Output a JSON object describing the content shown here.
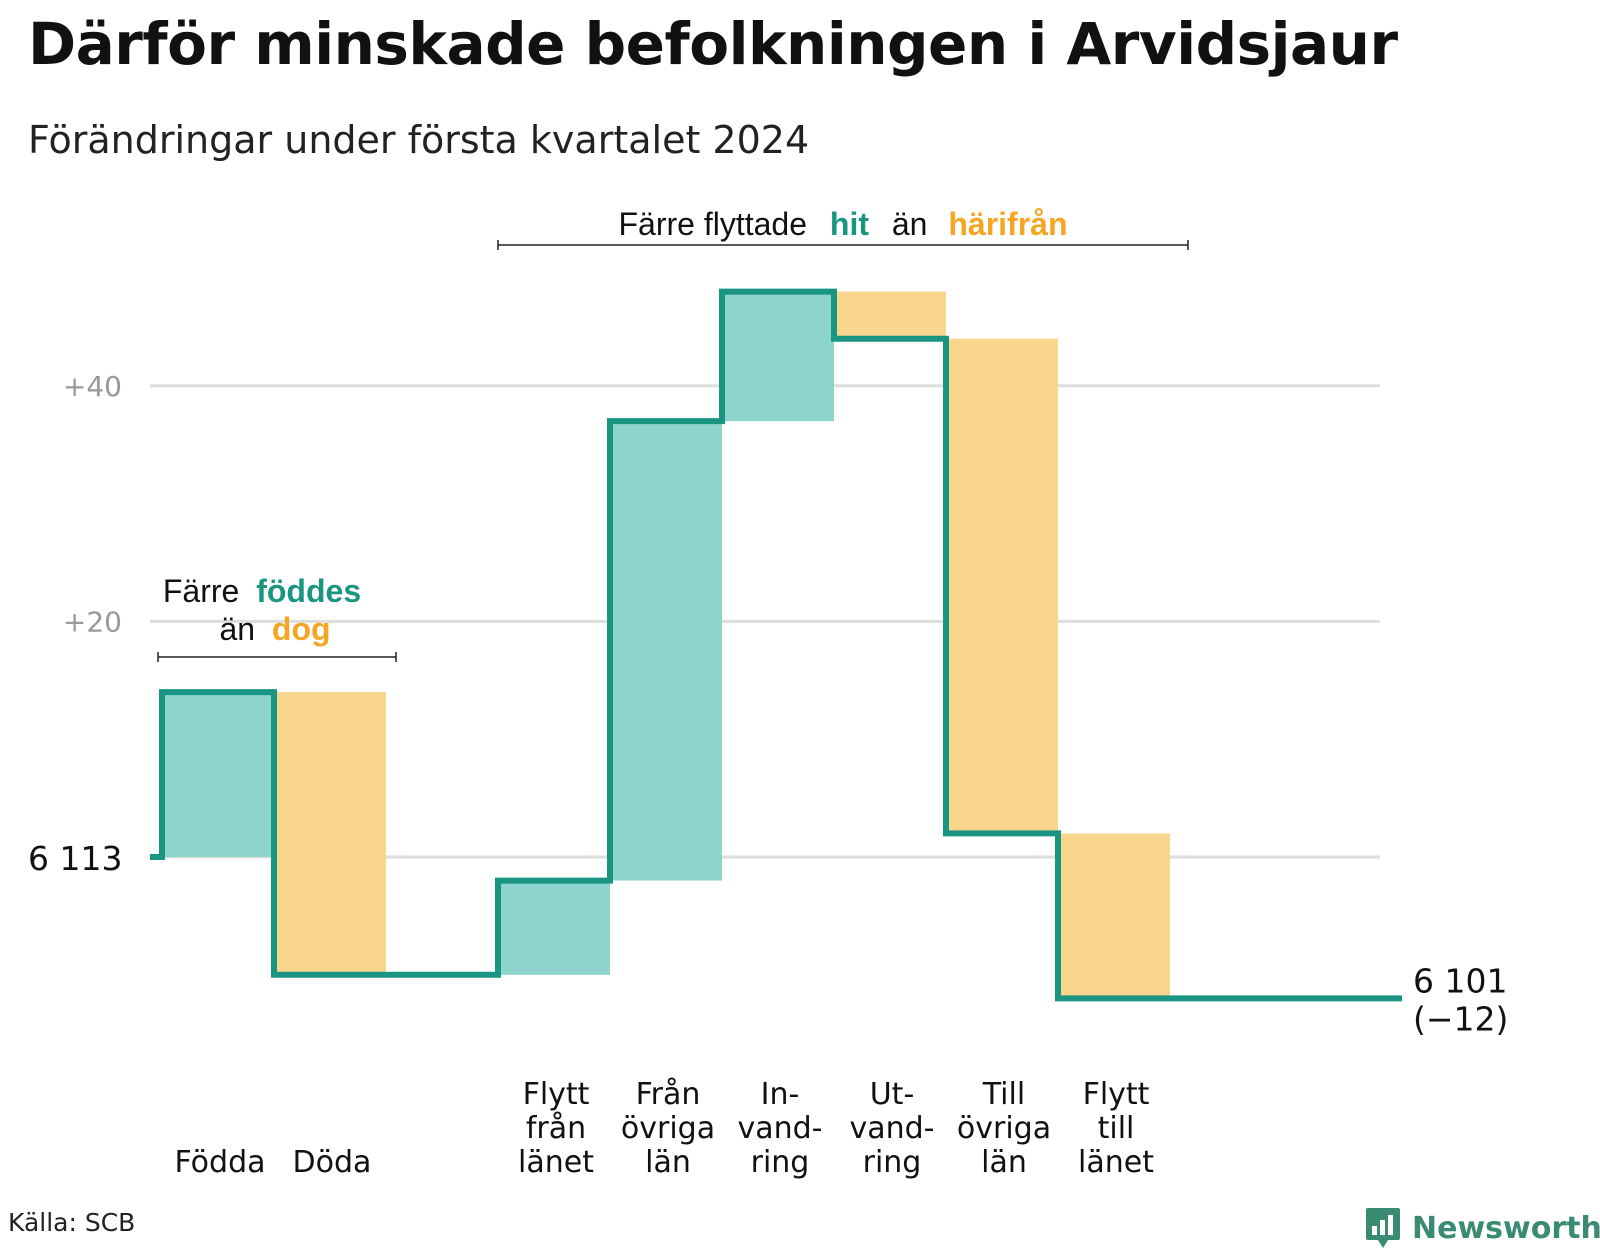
{
  "title": "Därför minskade befolkningen i Arvidsjaur",
  "subtitle": "Förändringar under första kvartalet 2024",
  "source": "Källa: SCB",
  "brand": "Newsworthy",
  "colors": {
    "increase": "#8dd5cc",
    "decrease": "#fad58e",
    "line": "#1a9582",
    "grid": "#dddddd",
    "tick": "#999999",
    "accent_teal": "#1a9582",
    "accent_orange": "#f5a623"
  },
  "annotations": {
    "natural": {
      "line1_prefix": "Färre",
      "line1_highlight": "föddes",
      "line2_prefix": "än",
      "line2_highlight": "dog"
    },
    "migration": {
      "prefix": "Färre flyttade",
      "highlight1": "hit",
      "middle": "än",
      "highlight2": "härifrån"
    }
  },
  "chart_data": {
    "type": "waterfall",
    "start_value": 6113,
    "start_label": "6 113",
    "end_value": 6101,
    "end_label_line1": "6 101",
    "end_label_line2": "(−12)",
    "yticks": [
      {
        "value": 40,
        "label": "+40"
      },
      {
        "value": 20,
        "label": "+20"
      },
      {
        "value": 0,
        "label": ""
      }
    ],
    "ylim": [
      -17,
      48
    ],
    "steps": [
      {
        "name": "Födda",
        "label_lines": [
          "Födda"
        ],
        "change": 14,
        "kind": "increase"
      },
      {
        "name": "Döda",
        "label_lines": [
          "Döda"
        ],
        "change": -24,
        "kind": "decrease"
      },
      {
        "name": "gap",
        "label_lines": [],
        "change": 0,
        "kind": "spacer"
      },
      {
        "name": "Flytt från länet",
        "label_lines": [
          "Flytt",
          "från",
          "länet"
        ],
        "change": 8,
        "kind": "increase"
      },
      {
        "name": "Från övriga län",
        "label_lines": [
          "Från",
          "övriga",
          "län"
        ],
        "change": 39,
        "kind": "increase"
      },
      {
        "name": "Invandring",
        "label_lines": [
          "In-",
          "vand-",
          "ring"
        ],
        "change": 11,
        "kind": "increase"
      },
      {
        "name": "Utvandring",
        "label_lines": [
          "Ut-",
          "vand-",
          "ring"
        ],
        "change": -4,
        "kind": "decrease"
      },
      {
        "name": "Till övriga län",
        "label_lines": [
          "Till",
          "övriga",
          "län"
        ],
        "change": -42,
        "kind": "decrease"
      },
      {
        "name": "Flytt till länet",
        "label_lines": [
          "Flytt",
          "till",
          "länet"
        ],
        "change": -14,
        "kind": "decrease"
      }
    ]
  }
}
